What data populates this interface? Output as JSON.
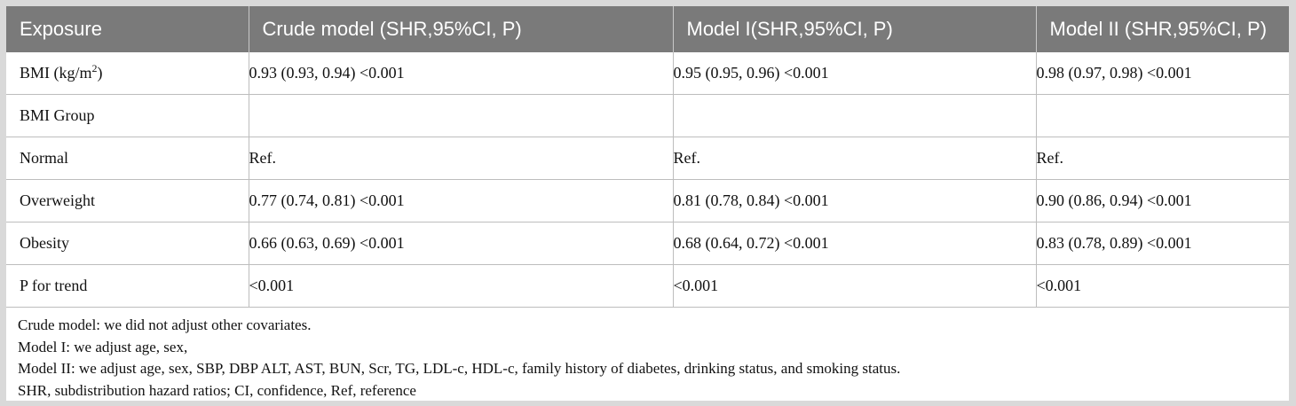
{
  "table": {
    "headers": [
      "Exposure",
      "Crude model (SHR,95%CI, P)",
      "Model I(SHR,95%CI, P)",
      "Model II (SHR,95%CI, P)"
    ],
    "bmi_row": {
      "label": "BMI (kg/m",
      "label_sup": "2",
      "label_end": ")",
      "crude": "0.93 (0.93, 0.94) <0.001",
      "model1": "0.95 (0.95, 0.96) <0.001",
      "model2": "0.98 (0.97, 0.98) <0.001"
    },
    "group_row": {
      "label": "BMI Group"
    },
    "normal_row": {
      "label": "Normal",
      "crude": "Ref.",
      "model1": "Ref.",
      "model2": "Ref."
    },
    "overweight_row": {
      "label": "Overweight",
      "crude": "0.77 (0.74, 0.81) <0.001",
      "model1": "0.81 (0.78, 0.84) <0.001",
      "model2": "0.90 (0.86, 0.94) <0.001"
    },
    "obesity_row": {
      "label": "Obesity",
      "crude": "0.66 (0.63, 0.69) <0.001",
      "model1": "0.68 (0.64, 0.72) <0.001",
      "model2": "0.83 (0.78, 0.89) <0.001"
    },
    "trend_row": {
      "label": "P for trend",
      "crude": "<0.001",
      "model1": "<0.001",
      "model2": "<0.001"
    }
  },
  "notes": [
    "Crude model: we did not adjust other covariates.",
    "Model I: we adjust age, sex,",
    "Model II: we adjust age, sex, SBP, DBP ALT, AST, BUN, Scr, TG, LDL-c, HDL-c, family history of diabetes, drinking status, and smoking status.",
    "SHR, subdistribution hazard ratios; CI, confidence, Ref, reference"
  ],
  "colors": {
    "header_bg": "#7a7a7a",
    "header_text": "#ffffff",
    "outer_border": "#d9d9d9",
    "grid_line": "#bdbdbd"
  }
}
